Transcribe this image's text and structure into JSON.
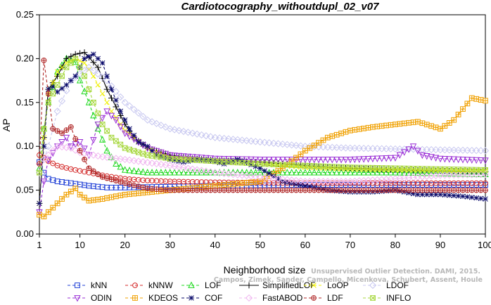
{
  "chart_data": {
    "type": "line",
    "title": "Cardiotocography_withoutdupl_02_v07",
    "xlabel": "Neighborhood size",
    "ylabel": "AP",
    "xlim": [
      1,
      100
    ],
    "ylim": [
      0,
      0.25
    ],
    "x_ticks": [
      1,
      10,
      20,
      30,
      40,
      50,
      60,
      70,
      80,
      90,
      100
    ],
    "y_ticks": [
      "0.00",
      "0.05",
      "0.10",
      "0.15",
      "0.20",
      "0.25"
    ],
    "legend_position": "bottom",
    "series": [
      {
        "name": "kNN",
        "color": "#1f3fd6",
        "marker": "square",
        "dash": "4,3",
        "knots": [
          [
            1,
            0.082
          ],
          [
            2,
            0.07
          ],
          [
            3,
            0.063
          ],
          [
            5,
            0.06
          ],
          [
            8,
            0.058
          ],
          [
            12,
            0.055
          ],
          [
            16,
            0.053
          ],
          [
            20,
            0.053
          ],
          [
            30,
            0.054
          ],
          [
            40,
            0.055
          ],
          [
            60,
            0.056
          ],
          [
            80,
            0.056
          ],
          [
            100,
            0.056
          ]
        ]
      },
      {
        "name": "kNNW",
        "color": "#d42a2a",
        "marker": "circle",
        "dash": "4,3",
        "knots": [
          [
            1,
            0.09
          ],
          [
            2,
            0.087
          ],
          [
            3,
            0.083
          ],
          [
            5,
            0.078
          ],
          [
            8,
            0.074
          ],
          [
            12,
            0.07
          ],
          [
            16,
            0.066
          ],
          [
            20,
            0.063
          ],
          [
            25,
            0.061
          ],
          [
            30,
            0.06
          ],
          [
            40,
            0.059
          ],
          [
            60,
            0.058
          ],
          [
            80,
            0.058
          ],
          [
            100,
            0.058
          ]
        ]
      },
      {
        "name": "LOF",
        "color": "#1ed81e",
        "marker": "triangle-up",
        "dash": "4,3",
        "knots": [
          [
            1,
            0.075
          ],
          [
            2,
            0.12
          ],
          [
            3,
            0.15
          ],
          [
            5,
            0.185
          ],
          [
            7,
            0.2
          ],
          [
            9,
            0.196
          ],
          [
            10,
            0.175
          ],
          [
            12,
            0.15
          ],
          [
            14,
            0.12
          ],
          [
            16,
            0.095
          ],
          [
            18,
            0.08
          ],
          [
            20,
            0.073
          ],
          [
            25,
            0.07
          ],
          [
            30,
            0.07
          ],
          [
            40,
            0.07
          ],
          [
            60,
            0.07
          ],
          [
            80,
            0.07
          ],
          [
            100,
            0.068
          ]
        ]
      },
      {
        "name": "SimplifiedLOF",
        "color": "#000000",
        "marker": "plus",
        "dash": "",
        "knots": [
          [
            1,
            0.035
          ],
          [
            2,
            0.11
          ],
          [
            3,
            0.165
          ],
          [
            5,
            0.18
          ],
          [
            7,
            0.2
          ],
          [
            9,
            0.205
          ],
          [
            11,
            0.207
          ],
          [
            14,
            0.19
          ],
          [
            16,
            0.165
          ],
          [
            18,
            0.145
          ],
          [
            20,
            0.125
          ],
          [
            22,
            0.11
          ],
          [
            25,
            0.098
          ],
          [
            30,
            0.09
          ],
          [
            35,
            0.086
          ],
          [
            40,
            0.084
          ],
          [
            50,
            0.082
          ],
          [
            60,
            0.078
          ],
          [
            70,
            0.075
          ],
          [
            80,
            0.073
          ],
          [
            90,
            0.072
          ],
          [
            100,
            0.071
          ]
        ]
      },
      {
        "name": "LoOP",
        "color": "#f0f000",
        "marker": "x",
        "dash": "4,3",
        "knots": [
          [
            1,
            0.035
          ],
          [
            2,
            0.11
          ],
          [
            3,
            0.16
          ],
          [
            5,
            0.185
          ],
          [
            7,
            0.195
          ],
          [
            9,
            0.2
          ],
          [
            11,
            0.195
          ],
          [
            13,
            0.18
          ],
          [
            15,
            0.16
          ],
          [
            17,
            0.14
          ],
          [
            20,
            0.118
          ],
          [
            25,
            0.098
          ],
          [
            30,
            0.088
          ],
          [
            40,
            0.083
          ],
          [
            50,
            0.08
          ],
          [
            60,
            0.076
          ],
          [
            70,
            0.074
          ],
          [
            80,
            0.073
          ],
          [
            100,
            0.072
          ]
        ]
      },
      {
        "name": "LDOF",
        "color": "#c8c8f0",
        "marker": "diamond",
        "dash": "4,3",
        "knots": [
          [
            1,
            0.07
          ],
          [
            3,
            0.1
          ],
          [
            5,
            0.14
          ],
          [
            8,
            0.175
          ],
          [
            12,
            0.19
          ],
          [
            16,
            0.175
          ],
          [
            20,
            0.15
          ],
          [
            25,
            0.13
          ],
          [
            30,
            0.12
          ],
          [
            40,
            0.11
          ],
          [
            50,
            0.105
          ],
          [
            60,
            0.1
          ],
          [
            70,
            0.098
          ],
          [
            80,
            0.097
          ],
          [
            100,
            0.095
          ]
        ]
      },
      {
        "name": "ODIN",
        "color": "#9a2fd6",
        "marker": "triangle-down",
        "dash": "4,3",
        "knots": [
          [
            1,
            0.025
          ],
          [
            2,
            0.06
          ],
          [
            3,
            0.085
          ],
          [
            5,
            0.1
          ],
          [
            7,
            0.11
          ],
          [
            8,
            0.1
          ],
          [
            10,
            0.105
          ],
          [
            12,
            0.09
          ],
          [
            14,
            0.125
          ],
          [
            16,
            0.14
          ],
          [
            18,
            0.13
          ],
          [
            20,
            0.115
          ],
          [
            25,
            0.098
          ],
          [
            30,
            0.09
          ],
          [
            40,
            0.086
          ],
          [
            50,
            0.085
          ],
          [
            60,
            0.085
          ],
          [
            70,
            0.085
          ],
          [
            80,
            0.087
          ],
          [
            84,
            0.1
          ],
          [
            86,
            0.09
          ],
          [
            90,
            0.086
          ],
          [
            100,
            0.084
          ]
        ]
      },
      {
        "name": "KDEOS",
        "color": "#f0a000",
        "marker": "square-cross",
        "dash": "4,3",
        "knots": [
          [
            1,
            0.022
          ],
          [
            2,
            0.02
          ],
          [
            3,
            0.025
          ],
          [
            5,
            0.035
          ],
          [
            7,
            0.045
          ],
          [
            9,
            0.052
          ],
          [
            10,
            0.045
          ],
          [
            12,
            0.038
          ],
          [
            15,
            0.04
          ],
          [
            20,
            0.045
          ],
          [
            30,
            0.05
          ],
          [
            40,
            0.055
          ],
          [
            50,
            0.06
          ],
          [
            55,
            0.075
          ],
          [
            60,
            0.095
          ],
          [
            65,
            0.11
          ],
          [
            70,
            0.118
          ],
          [
            75,
            0.122
          ],
          [
            80,
            0.125
          ],
          [
            85,
            0.128
          ],
          [
            90,
            0.12
          ],
          [
            93,
            0.13
          ],
          [
            97,
            0.155
          ],
          [
            100,
            0.152
          ]
        ]
      },
      {
        "name": "COF",
        "color": "#0a0a6a",
        "marker": "star",
        "dash": "4,3",
        "knots": [
          [
            1,
            0.035
          ],
          [
            2,
            0.1
          ],
          [
            3,
            0.165
          ],
          [
            4,
            0.168
          ],
          [
            5,
            0.162
          ],
          [
            7,
            0.17
          ],
          [
            9,
            0.18
          ],
          [
            11,
            0.2
          ],
          [
            13,
            0.205
          ],
          [
            15,
            0.195
          ],
          [
            17,
            0.165
          ],
          [
            19,
            0.14
          ],
          [
            21,
            0.12
          ],
          [
            23,
            0.105
          ],
          [
            25,
            0.1
          ],
          [
            27,
            0.09
          ],
          [
            30,
            0.085
          ],
          [
            33,
            0.082
          ],
          [
            36,
            0.085
          ],
          [
            39,
            0.084
          ],
          [
            42,
            0.08
          ],
          [
            45,
            0.085
          ],
          [
            50,
            0.075
          ],
          [
            55,
            0.06
          ],
          [
            60,
            0.055
          ],
          [
            65,
            0.05
          ],
          [
            70,
            0.048
          ],
          [
            75,
            0.048
          ],
          [
            80,
            0.05
          ],
          [
            85,
            0.045
          ],
          [
            90,
            0.045
          ],
          [
            95,
            0.043
          ],
          [
            100,
            0.04
          ]
        ]
      },
      {
        "name": "FastABOD",
        "color": "#f0b8f0",
        "marker": "diamond-open",
        "dash": "4,3",
        "knots": [
          [
            1,
            0.08
          ],
          [
            3,
            0.09
          ],
          [
            5,
            0.1
          ],
          [
            8,
            0.098
          ],
          [
            10,
            0.093
          ],
          [
            15,
            0.088
          ],
          [
            20,
            0.085
          ],
          [
            30,
            0.078
          ],
          [
            40,
            0.07
          ],
          [
            50,
            0.065
          ],
          [
            60,
            0.06
          ],
          [
            70,
            0.06
          ],
          [
            80,
            0.063
          ],
          [
            90,
            0.067
          ],
          [
            100,
            0.068
          ]
        ]
      },
      {
        "name": "LDF",
        "color": "#b02828",
        "marker": "circle-plus",
        "dash": "4,3",
        "knots": [
          [
            1,
            0.08
          ],
          [
            2,
            0.198
          ],
          [
            3,
            0.16
          ],
          [
            4,
            0.12
          ],
          [
            6,
            0.115
          ],
          [
            8,
            0.122
          ],
          [
            10,
            0.095
          ],
          [
            12,
            0.075
          ],
          [
            15,
            0.065
          ],
          [
            20,
            0.058
          ],
          [
            25,
            0.052
          ],
          [
            30,
            0.05
          ],
          [
            40,
            0.05
          ],
          [
            60,
            0.05
          ],
          [
            80,
            0.05
          ],
          [
            100,
            0.05
          ]
        ]
      },
      {
        "name": "INFLO",
        "color": "#a8d840",
        "marker": "square-x",
        "dash": "4,3",
        "knots": [
          [
            1,
            0.07
          ],
          [
            2,
            0.12
          ],
          [
            3,
            0.15
          ],
          [
            5,
            0.17
          ],
          [
            7,
            0.19
          ],
          [
            9,
            0.2
          ],
          [
            11,
            0.18
          ],
          [
            13,
            0.15
          ],
          [
            15,
            0.125
          ],
          [
            17,
            0.11
          ],
          [
            20,
            0.098
          ],
          [
            25,
            0.09
          ],
          [
            30,
            0.086
          ],
          [
            40,
            0.083
          ],
          [
            50,
            0.08
          ],
          [
            60,
            0.078
          ],
          [
            70,
            0.076
          ],
          [
            80,
            0.075
          ],
          [
            90,
            0.074
          ],
          [
            100,
            0.073
          ]
        ]
      }
    ]
  },
  "watermark": {
    "line1": "Unsupervised Outlier Detection. DAMI, 2015.",
    "line2": "Campos, Zimek, Sander, Campello, Micenkova, Schubert, Assent, Houle"
  }
}
